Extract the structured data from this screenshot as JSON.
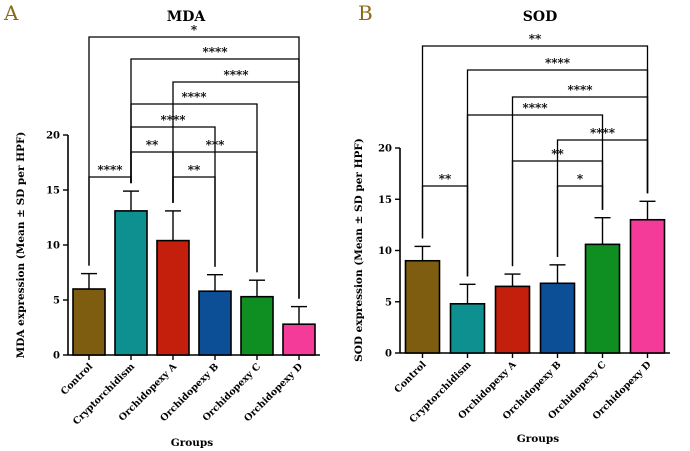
{
  "chart_data": [
    {
      "panel_letter": "A",
      "type": "bar",
      "title": "MDA",
      "xlabel": "Groups",
      "ylabel": "MDA expression (Mean ± SD per HPF)",
      "ylim": [
        0,
        20
      ],
      "yticks": [
        0,
        5,
        10,
        15,
        20
      ],
      "categories": [
        "Control",
        "Cryptorchidism",
        "Orchidopexy A",
        "Orchidopexy B",
        "Orchidopexy C",
        "Orchidopexy D"
      ],
      "values": [
        6.0,
        13.1,
        10.4,
        5.8,
        5.3,
        2.8
      ],
      "errors": [
        1.4,
        1.8,
        2.7,
        1.5,
        1.5,
        1.6
      ],
      "colors": [
        "#7e5c10",
        "#0e9090",
        "#c41f0c",
        "#0d4f96",
        "#0f8f22",
        "#f43b9a"
      ],
      "comparisons": [
        {
          "from": 0,
          "to": 5,
          "label": "*"
        },
        {
          "from": 1,
          "to": 5,
          "label": "****"
        },
        {
          "from": 2,
          "to": 5,
          "label": "****"
        },
        {
          "from": 1,
          "to": 4,
          "label": "****"
        },
        {
          "from": 1,
          "to": 3,
          "label": "****"
        },
        {
          "from": 1,
          "to": 2,
          "label": "**"
        },
        {
          "from": 0,
          "to": 1,
          "label": "****"
        },
        {
          "from": 2,
          "to": 4,
          "label": "***"
        },
        {
          "from": 2,
          "to": 3,
          "label": "**"
        }
      ]
    },
    {
      "panel_letter": "B",
      "type": "bar",
      "title": "SOD",
      "xlabel": "Groups",
      "ylabel": "SOD expression (Mean ± SD per HPF)",
      "ylim": [
        0,
        20
      ],
      "yticks": [
        0,
        5,
        10,
        15,
        20
      ],
      "categories": [
        "Control",
        "Cryptorchidism",
        "Orchidopexy A",
        "Orchidopexy B",
        "Orchidopexy C",
        "Orchidopexy D"
      ],
      "values": [
        9.0,
        4.8,
        6.5,
        6.8,
        10.6,
        13.0
      ],
      "errors": [
        1.4,
        1.9,
        1.2,
        1.8,
        2.6,
        1.8
      ],
      "colors": [
        "#7e5c10",
        "#0e9090",
        "#c41f0c",
        "#0d4f96",
        "#0f8f22",
        "#f43b9a"
      ],
      "comparisons": [
        {
          "from": 0,
          "to": 5,
          "label": "**"
        },
        {
          "from": 1,
          "to": 5,
          "label": "****"
        },
        {
          "from": 2,
          "to": 5,
          "label": "****"
        },
        {
          "from": 1,
          "to": 4,
          "label": "****"
        },
        {
          "from": 3,
          "to": 5,
          "label": "****"
        },
        {
          "from": 2,
          "to": 4,
          "label": "**"
        },
        {
          "from": 0,
          "to": 1,
          "label": "**"
        },
        {
          "from": 3,
          "to": 4,
          "label": "*"
        }
      ]
    }
  ]
}
